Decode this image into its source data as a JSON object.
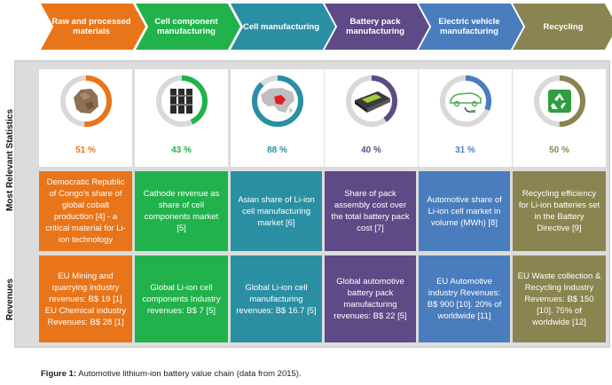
{
  "stages": [
    {
      "label": "Raw and processed materials",
      "color": "#e8751a"
    },
    {
      "label": "Cell component manufacturing",
      "color": "#22b24c"
    },
    {
      "label": "Cell manufacturing",
      "color": "#2b8fa3"
    },
    {
      "label": "Battery pack manufacturing",
      "color": "#5e4a86"
    },
    {
      "label": "Electric vehicle manufacturing",
      "color": "#4a7dbd"
    },
    {
      "label": "Recycling",
      "color": "#8a8550"
    }
  ],
  "rows": {
    "statistics_label": "Most Relevant Statistics",
    "revenues_label": "Revenues"
  },
  "stats": [
    {
      "value": 51,
      "display": "51 %",
      "icon": "cobalt-rock-icon",
      "description": "Democratic Republic of Congo's share of global cobalt production [4] - a critical material for Li-ion technology"
    },
    {
      "value": 43,
      "display": "43 %",
      "icon": "cathode-plates-icon",
      "description": "Cathode revenue as share of cell components market [5]"
    },
    {
      "value": 88,
      "display": "88 %",
      "icon": "asia-map-icon",
      "description": "Asian share of Li-ion cell manufacturing market [6]"
    },
    {
      "value": 40,
      "display": "40 %",
      "icon": "battery-pack-icon",
      "description": "Share of pack assembly cost over the total battery pack cost [7]"
    },
    {
      "value": 31,
      "display": "31 %",
      "icon": "electric-car-icon",
      "description": "Automotive share of Li-ion cell market in volume (MWh) [8]"
    },
    {
      "value": 50,
      "display": "50 %",
      "icon": "recycling-icon",
      "description": "Recycling efficiency for Li-ion batteries set in the Battery Directive [9]"
    }
  ],
  "revenues": [
    {
      "text": "EU Mining and quarrying industry revenues: B$ 19 [1] EU Chemical industry Revenues: B$ 28 [1]"
    },
    {
      "text": "Global Li-ion cell components Industry revenues: B$ 7 [5]"
    },
    {
      "text": "Global Li-ion cell manufacturing revenues: B$ 16.7 [5]"
    },
    {
      "text": "Global automotive battery pack manufacturing revenues: B$ 22 [5]"
    },
    {
      "text": "EU Automotive industry Revenues: B$ 900 [10]. 20% of worldwide [11]"
    },
    {
      "text": "EU Waste collection & Recycling Industry Revenues: B$ 150 [10]. 75% of worldwide [12]"
    }
  ],
  "caption": {
    "label": "Figure 1:",
    "text": "Automotive lithium-ion battery value chain (data from 2015)."
  }
}
